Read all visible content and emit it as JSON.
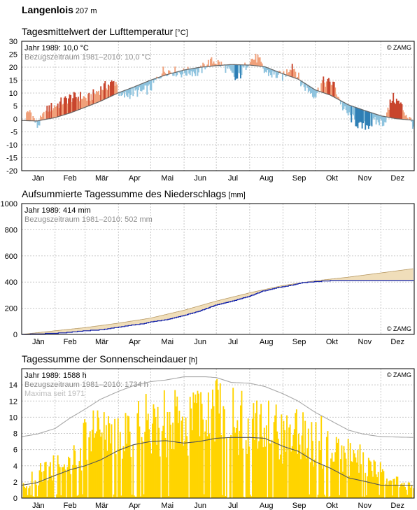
{
  "station": {
    "name": "Langenlois",
    "altitude": "207 m"
  },
  "months": [
    "Jän",
    "Feb",
    "Mär",
    "Apr",
    "Mai",
    "Jun",
    "Jul",
    "Aug",
    "Sep",
    "Okt",
    "Nov",
    "Dez"
  ],
  "colors": {
    "warm": "#f0a07a",
    "warm_dark": "#c8452d",
    "cold": "#8ec3de",
    "cold_dark": "#2f7fb5",
    "climate_line": "#666666",
    "precip_year": "#0a1aa8",
    "precip_fill": "#f0deba",
    "sun_bar": "#ffd400",
    "sun_max": "#a8a8a8"
  },
  "panels": {
    "temperature": {
      "title": "Tagesmittelwert der Lufttemperatur",
      "unit": "[°C]",
      "legend_year": "Jahr 1989: 10,0 °C",
      "legend_ref": "Bezugszeitraum 1981–2010: 10,0 °C",
      "copyright": "© ZAMG"
    },
    "precipitation": {
      "title": "Aufsummierte Tagessumme des Niederschlags",
      "unit": "[mm]",
      "legend_year": "Jahr 1989: 414 mm",
      "legend_ref": "Bezugszeitraum 1981–2010: 502 mm",
      "copyright": "© ZAMG"
    },
    "sunshine": {
      "title": "Tagessumme der Sonnenscheindauer",
      "unit": "[h]",
      "legend_year": "Jahr 1989: 1588 h",
      "legend_ref": "Bezugszeitraum 1981–2010: 1734 h",
      "legend_max": "Maxima seit 1971",
      "copyright": "© ZAMG"
    }
  },
  "chart_data": [
    {
      "type": "area",
      "id": "temperature",
      "title": "Tagesmittelwert der Lufttemperatur",
      "ylabel": "°C",
      "ylim": [
        -20,
        30
      ],
      "yticks": [
        -20,
        -15,
        -10,
        -5,
        0,
        5,
        10,
        15,
        20,
        25,
        30
      ],
      "grid": true,
      "x": "day of year (Jän–Dez)",
      "series": [
        {
          "name": "Bezugszeitraum 1981–2010: 10,0 °C",
          "kind": "climate-mean-line",
          "keypoints_day_value": [
            [
              1,
              -0.6
            ],
            [
              15,
              -0.8
            ],
            [
              32,
              0.5
            ],
            [
              46,
              2.3
            ],
            [
              60,
              4.5
            ],
            [
              74,
              6.8
            ],
            [
              91,
              10.1
            ],
            [
              105,
              12.3
            ],
            [
              121,
              15.0
            ],
            [
              135,
              17.0
            ],
            [
              152,
              18.9
            ],
            [
              166,
              19.9
            ],
            [
              182,
              20.6
            ],
            [
              196,
              21.0
            ],
            [
              213,
              20.8
            ],
            [
              227,
              20.2
            ],
            [
              244,
              17.4
            ],
            [
              258,
              15.4
            ],
            [
              274,
              11.2
            ],
            [
              288,
              9.2
            ],
            [
              305,
              5.4
            ],
            [
              319,
              3.4
            ],
            [
              335,
              1.2
            ],
            [
              349,
              0.1
            ],
            [
              365,
              -0.5
            ]
          ]
        },
        {
          "name": "Jahr 1989: 10,0 °C",
          "kind": "daily-anomaly-bars",
          "anomaly_keypoints_day_value": [
            [
              1,
              -1
            ],
            [
              8,
              4
            ],
            [
              15,
              -2
            ],
            [
              25,
              4
            ],
            [
              35,
              5
            ],
            [
              45,
              6
            ],
            [
              55,
              5
            ],
            [
              62,
              3
            ],
            [
              75,
              5
            ],
            [
              88,
              5
            ],
            [
              92,
              -2
            ],
            [
              105,
              -2
            ],
            [
              112,
              -3
            ],
            [
              120,
              -3
            ],
            [
              132,
              2
            ],
            [
              140,
              1
            ],
            [
              150,
              -1
            ],
            [
              158,
              -1
            ],
            [
              165,
              -2
            ],
            [
              172,
              1
            ],
            [
              180,
              2
            ],
            [
              190,
              -1
            ],
            [
              200,
              -6
            ],
            [
              205,
              -3
            ],
            [
              212,
              2
            ],
            [
              220,
              3
            ],
            [
              226,
              -2
            ],
            [
              234,
              -2
            ],
            [
              244,
              -1
            ],
            [
              252,
              5
            ],
            [
              260,
              -1
            ],
            [
              268,
              -2
            ],
            [
              274,
              -2
            ],
            [
              280,
              4
            ],
            [
              290,
              5
            ],
            [
              300,
              -3
            ],
            [
              308,
              -5
            ],
            [
              316,
              -7
            ],
            [
              323,
              -5
            ],
            [
              330,
              -3
            ],
            [
              338,
              -2
            ],
            [
              345,
              8
            ],
            [
              352,
              6
            ],
            [
              358,
              2
            ],
            [
              365,
              -2
            ]
          ]
        }
      ]
    },
    {
      "type": "area",
      "id": "precipitation",
      "title": "Aufsummierte Tagessumme des Niederschlags",
      "ylabel": "mm",
      "ylim": [
        0,
        1000
      ],
      "yticks": [
        0,
        200,
        400,
        600,
        800,
        1000
      ],
      "grid": true,
      "series": [
        {
          "name": "Bezugszeitraum 1981–2010: 502 mm",
          "kind": "climate-cumulative-area",
          "keypoints_day_value": [
            [
              1,
              0
            ],
            [
              32,
              28
            ],
            [
              60,
              52
            ],
            [
              91,
              86
            ],
            [
              121,
              125
            ],
            [
              152,
              185
            ],
            [
              182,
              255
            ],
            [
              213,
              318
            ],
            [
              244,
              374
            ],
            [
              274,
              410
            ],
            [
              305,
              438
            ],
            [
              335,
              470
            ],
            [
              365,
              502
            ]
          ]
        },
        {
          "name": "Jahr 1989: 414 mm",
          "kind": "year-cumulative-step-line",
          "keypoints_day_value": [
            [
              1,
              0
            ],
            [
              20,
              5
            ],
            [
              40,
              12
            ],
            [
              60,
              28
            ],
            [
              75,
              35
            ],
            [
              91,
              55
            ],
            [
              100,
              67
            ],
            [
              113,
              80
            ],
            [
              121,
              95
            ],
            [
              135,
              112
            ],
            [
              152,
              145
            ],
            [
              165,
              175
            ],
            [
              182,
              225
            ],
            [
              195,
              250
            ],
            [
              207,
              278
            ],
            [
              213,
              292
            ],
            [
              225,
              330
            ],
            [
              240,
              358
            ],
            [
              255,
              380
            ],
            [
              262,
              395
            ],
            [
              274,
              403
            ],
            [
              288,
              410
            ],
            [
              300,
              413
            ],
            [
              365,
              414
            ]
          ]
        }
      ]
    },
    {
      "type": "bar",
      "id": "sunshine",
      "title": "Tagessumme der Sonnenscheindauer",
      "ylabel": "h",
      "ylim": [
        0,
        16
      ],
      "yticks": [
        0,
        2,
        4,
        6,
        8,
        10,
        12,
        14
      ],
      "grid": true,
      "series": [
        {
          "name": "Maxima seit 1971",
          "kind": "max-line",
          "keypoints_day_value": [
            [
              1,
              7.6
            ],
            [
              15,
              7.9
            ],
            [
              32,
              8.6
            ],
            [
              46,
              9.9
            ],
            [
              60,
              11.0
            ],
            [
              74,
              12.2
            ],
            [
              91,
              13.2
            ],
            [
              105,
              13.9
            ],
            [
              121,
              14.4
            ],
            [
              135,
              14.6
            ],
            [
              152,
              15.0
            ],
            [
              172,
              15.0
            ],
            [
              182,
              14.9
            ],
            [
              196,
              14.3
            ],
            [
              213,
              14.2
            ],
            [
              227,
              13.8
            ],
            [
              244,
              12.9
            ],
            [
              258,
              12.0
            ],
            [
              274,
              10.6
            ],
            [
              288,
              9.6
            ],
            [
              305,
              8.4
            ],
            [
              319,
              7.9
            ],
            [
              335,
              7.6
            ],
            [
              365,
              7.5
            ]
          ]
        },
        {
          "name": "Bezugszeitraum 1981–2010: 1734 h",
          "kind": "climate-mean-line",
          "keypoints_day_value": [
            [
              1,
              1.6
            ],
            [
              15,
              1.9
            ],
            [
              32,
              2.8
            ],
            [
              46,
              3.5
            ],
            [
              60,
              4.0
            ],
            [
              74,
              4.7
            ],
            [
              91,
              5.9
            ],
            [
              105,
              6.6
            ],
            [
              121,
              7.0
            ],
            [
              135,
              7.1
            ],
            [
              152,
              6.8
            ],
            [
              166,
              7.0
            ],
            [
              182,
              7.4
            ],
            [
              196,
              7.5
            ],
            [
              213,
              7.5
            ],
            [
              227,
              7.4
            ],
            [
              244,
              6.4
            ],
            [
              258,
              5.8
            ],
            [
              274,
              4.5
            ],
            [
              288,
              3.7
            ],
            [
              305,
              2.5
            ],
            [
              319,
              2.1
            ],
            [
              335,
              1.6
            ],
            [
              365,
              1.6
            ]
          ]
        },
        {
          "name": "Jahr 1989: 1588 h",
          "kind": "daily-bars",
          "envelope_keypoints_day_value": [
            [
              1,
              2
            ],
            [
              20,
              5
            ],
            [
              40,
              6
            ],
            [
              60,
              10
            ],
            [
              75,
              13
            ],
            [
              90,
              11
            ],
            [
              105,
              12
            ],
            [
              121,
              14
            ],
            [
              135,
              14
            ],
            [
              150,
              13
            ],
            [
              165,
              14
            ],
            [
              180,
              15
            ],
            [
              195,
              14
            ],
            [
              210,
              14
            ],
            [
              225,
              13
            ],
            [
              240,
              12
            ],
            [
              255,
              12
            ],
            [
              270,
              11
            ],
            [
              285,
              10
            ],
            [
              300,
              8
            ],
            [
              315,
              7
            ],
            [
              330,
              5
            ],
            [
              345,
              3
            ],
            [
              365,
              2
            ]
          ]
        }
      ]
    }
  ]
}
